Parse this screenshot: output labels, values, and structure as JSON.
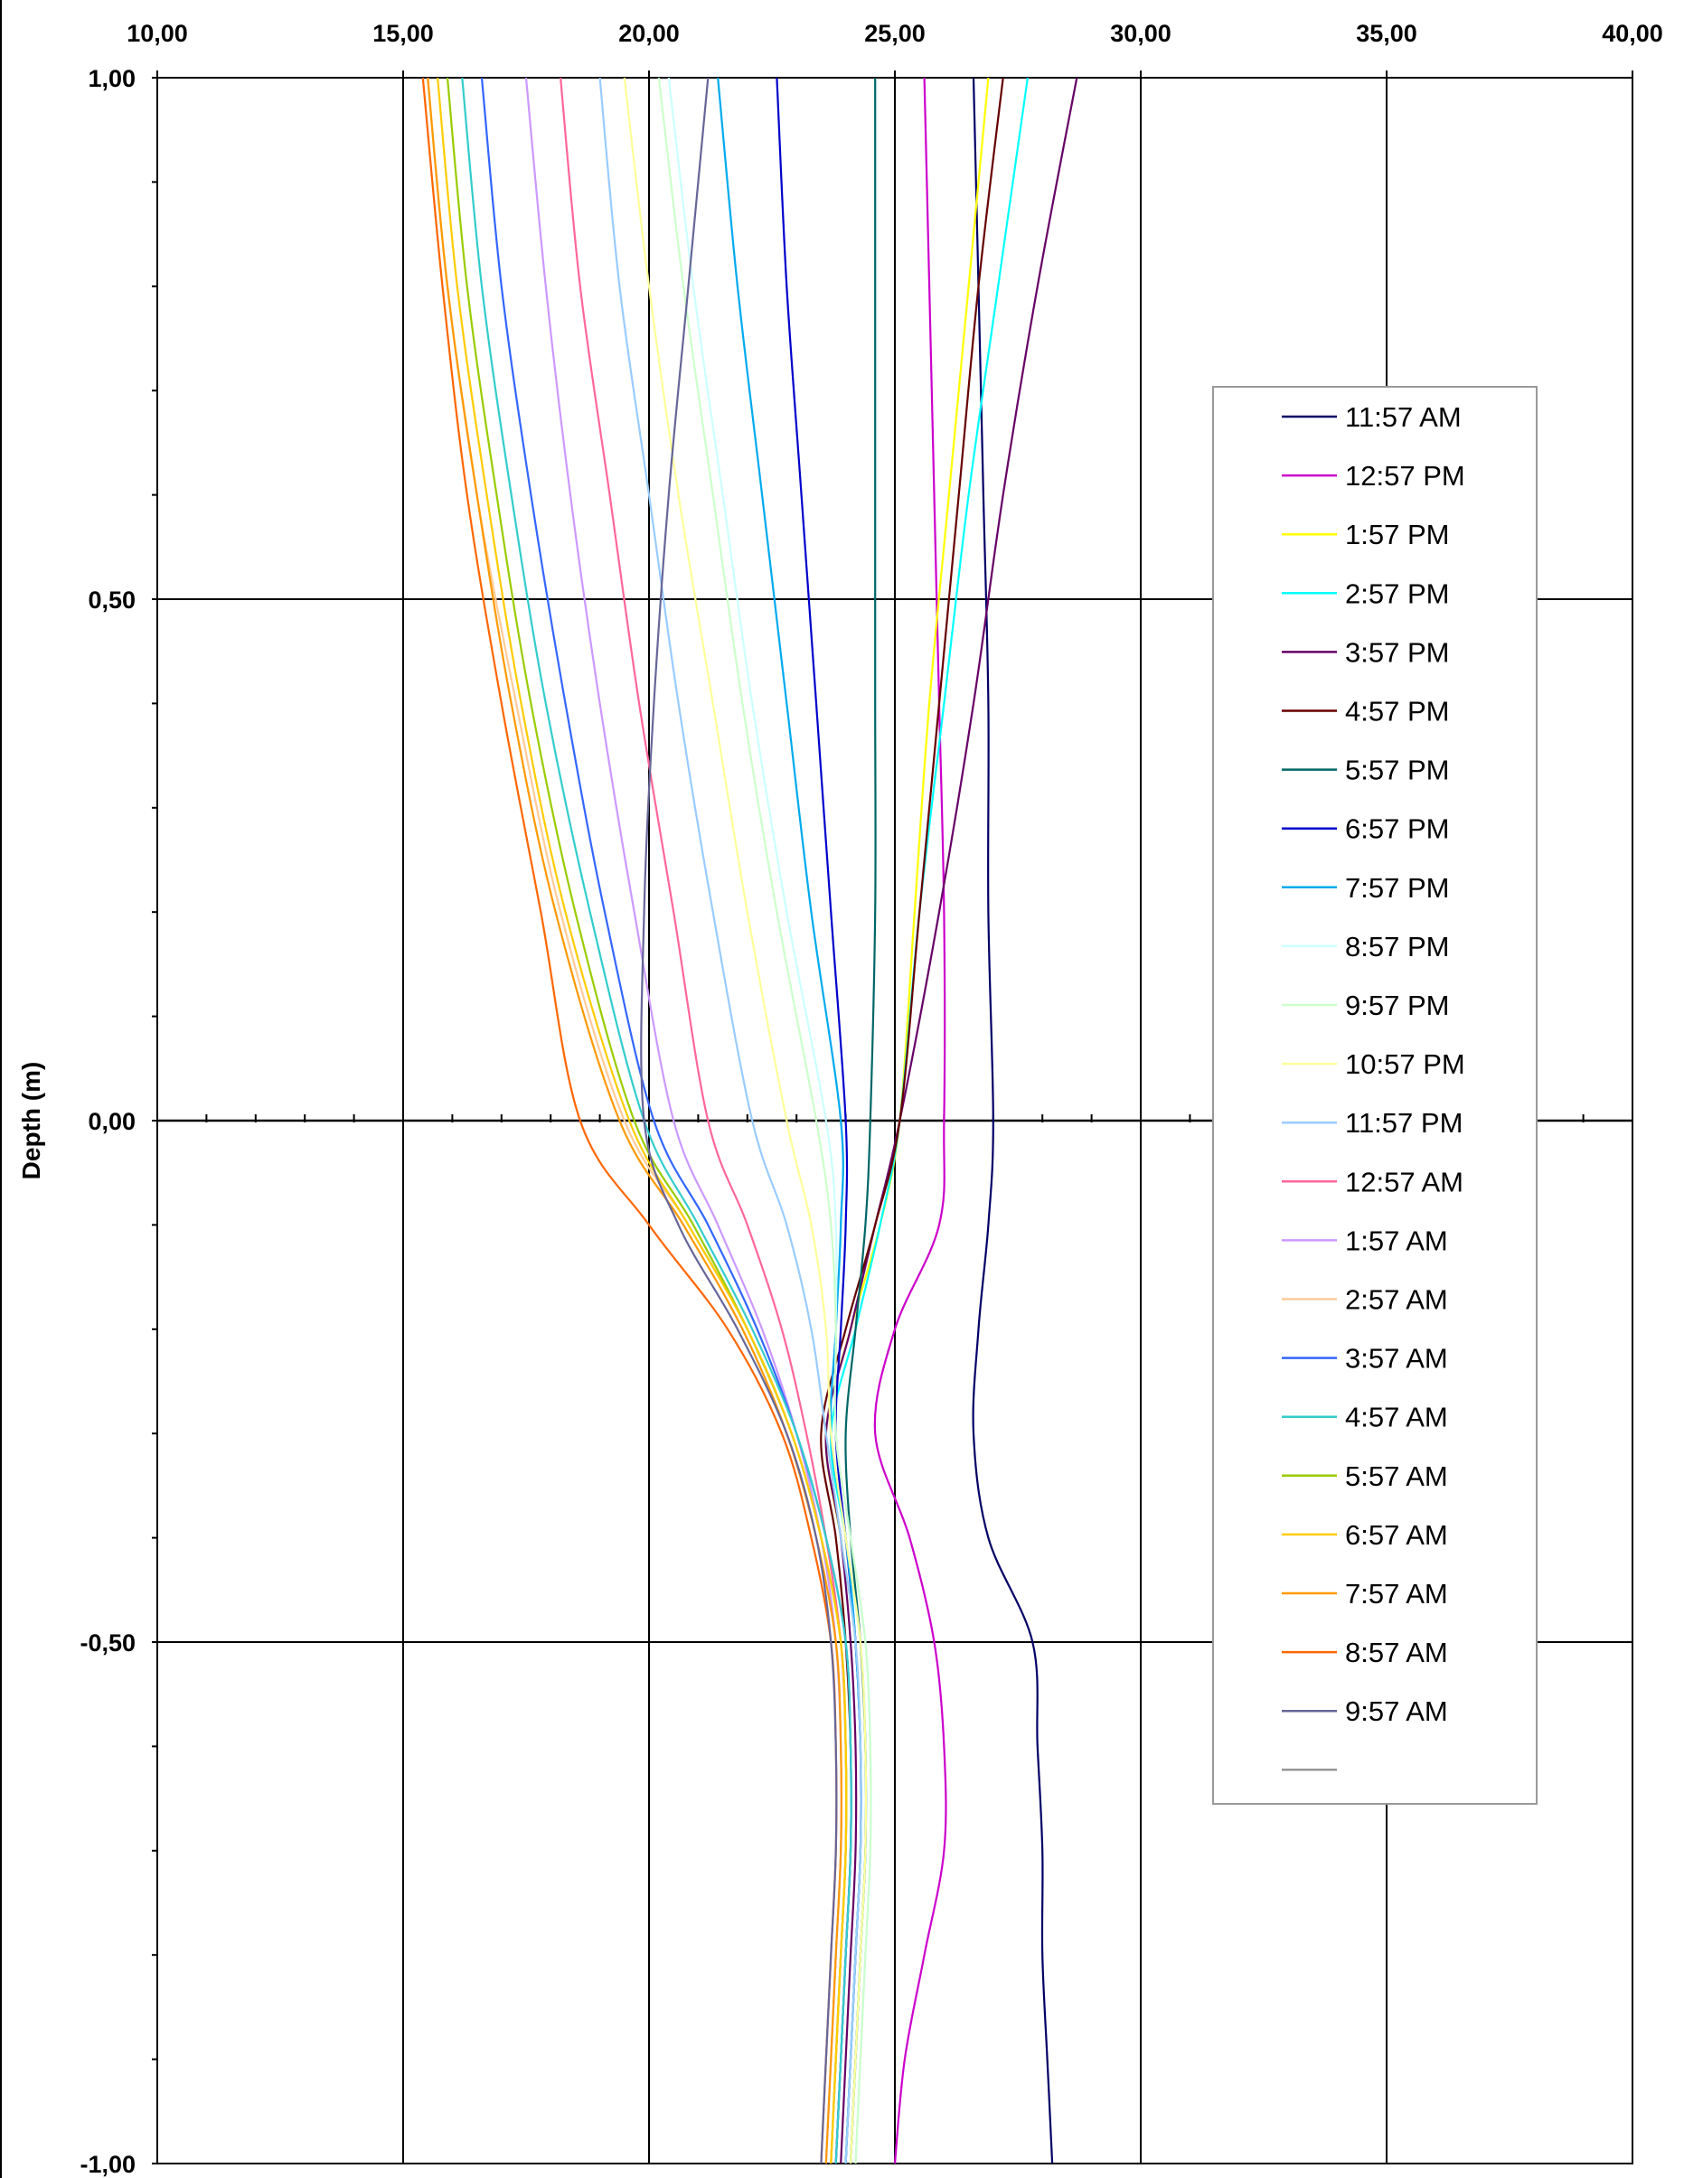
{
  "chart_data": {
    "type": "line",
    "title": "",
    "xlabel": "",
    "ylabel": "Depth (m)",
    "xlim": [
      10,
      40
    ],
    "ylim": [
      -1,
      1
    ],
    "x_ticks": [
      10,
      15,
      20,
      25,
      30,
      35,
      40
    ],
    "x_tick_labels": [
      "10,00",
      "15,00",
      "20,00",
      "25,00",
      "30,00",
      "35,00",
      "40,00"
    ],
    "y_ticks": [
      1,
      0.5,
      0,
      -0.5,
      -1
    ],
    "y_tick_labels": [
      "1,00",
      "0,50",
      "0,00",
      "-0,50",
      "-1,00"
    ],
    "x_axis_position": "top",
    "grid": true,
    "legend_position": "right",
    "depth": [
      1.0,
      0.8,
      0.6,
      0.4,
      0.2,
      0.0,
      -0.1,
      -0.2,
      -0.3,
      -0.4,
      -0.5,
      -0.6,
      -0.7,
      -0.8,
      -0.9,
      -1.0
    ],
    "series": [
      {
        "name": "11:57 AM",
        "color": "#000066",
        "values": [
          26.6,
          26.7,
          26.8,
          26.9,
          26.9,
          27.0,
          26.9,
          26.7,
          26.6,
          26.9,
          27.8,
          27.9,
          28.0,
          28.0,
          28.1,
          28.2
        ]
      },
      {
        "name": "12:57 PM",
        "color": "#cc00cc",
        "values": [
          25.6,
          25.7,
          25.8,
          25.9,
          26.0,
          26.0,
          25.9,
          25.0,
          24.6,
          25.3,
          25.8,
          26.0,
          26.0,
          25.6,
          25.2,
          25.0
        ]
      },
      {
        "name": "1:57 PM",
        "color": "#ffff00",
        "values": [
          26.9,
          26.5,
          26.1,
          25.7,
          25.4,
          25.1,
          24.7,
          24.1,
          23.6,
          23.9,
          24.2,
          24.3,
          24.3,
          24.2,
          24.1,
          24.0
        ]
      },
      {
        "name": "2:57 PM",
        "color": "#00ffff",
        "values": [
          27.7,
          27.1,
          26.5,
          26.0,
          25.5,
          25.1,
          24.7,
          24.2,
          23.7,
          24.0,
          24.3,
          24.4,
          24.4,
          24.3,
          24.2,
          24.1
        ]
      },
      {
        "name": "3:57 PM",
        "color": "#660066",
        "values": [
          28.7,
          27.9,
          27.2,
          26.6,
          25.9,
          25.1,
          24.6,
          24.1,
          23.6,
          23.9,
          24.1,
          24.2,
          24.2,
          24.1,
          24.0,
          23.9
        ]
      },
      {
        "name": "4:57 PM",
        "color": "#660000",
        "values": [
          27.2,
          26.7,
          26.3,
          25.9,
          25.5,
          25.1,
          24.6,
          24.0,
          23.5,
          23.8,
          24.0,
          24.1,
          24.1,
          24.0,
          23.9,
          23.8
        ]
      },
      {
        "name": "5:57 PM",
        "color": "#006666",
        "values": [
          24.6,
          24.6,
          24.6,
          24.6,
          24.6,
          24.5,
          24.4,
          24.2,
          24.0,
          24.1,
          24.3,
          24.4,
          24.4,
          24.3,
          24.2,
          24.1
        ]
      },
      {
        "name": "6:57 PM",
        "color": "#0000cc",
        "values": [
          22.6,
          22.8,
          23.1,
          23.4,
          23.7,
          24.0,
          24.0,
          23.9,
          23.8,
          24.0,
          24.2,
          24.3,
          24.3,
          24.2,
          24.1,
          24.0
        ]
      },
      {
        "name": "7:57 PM",
        "color": "#00aaee",
        "values": [
          21.4,
          21.8,
          22.3,
          22.8,
          23.3,
          23.9,
          23.9,
          23.8,
          23.7,
          24.0,
          24.2,
          24.3,
          24.3,
          24.2,
          24.1,
          24.0
        ]
      },
      {
        "name": "8:57 PM",
        "color": "#ccffff",
        "values": [
          20.4,
          20.9,
          21.5,
          22.1,
          22.8,
          23.6,
          23.8,
          23.8,
          23.8,
          24.1,
          24.4,
          24.5,
          24.5,
          24.4,
          24.3,
          24.2
        ]
      },
      {
        "name": "9:57 PM",
        "color": "#ccffcc",
        "values": [
          20.2,
          20.7,
          21.3,
          21.9,
          22.6,
          23.4,
          23.7,
          23.8,
          23.8,
          24.1,
          24.4,
          24.5,
          24.5,
          24.4,
          24.3,
          24.2
        ]
      },
      {
        "name": "10:57 PM",
        "color": "#ffff99",
        "values": [
          19.5,
          20.0,
          20.6,
          21.3,
          22.0,
          22.8,
          23.3,
          23.6,
          23.7,
          24.0,
          24.3,
          24.4,
          24.4,
          24.3,
          24.2,
          24.1
        ]
      },
      {
        "name": "11:57 PM",
        "color": "#99ccff",
        "values": [
          19.0,
          19.4,
          20.0,
          20.6,
          21.3,
          22.1,
          22.8,
          23.3,
          23.6,
          23.9,
          24.2,
          24.3,
          24.3,
          24.2,
          24.1,
          24.0
        ]
      },
      {
        "name": "12:57 AM",
        "color": "#ff6699",
        "values": [
          18.2,
          18.6,
          19.2,
          19.8,
          20.5,
          21.2,
          22.0,
          22.7,
          23.2,
          23.6,
          23.9,
          24.0,
          24.0,
          23.9,
          23.8,
          23.7
        ]
      },
      {
        "name": "1:57 AM",
        "color": "#cc99ff",
        "values": [
          17.5,
          17.9,
          18.4,
          19.0,
          19.7,
          20.5,
          21.4,
          22.3,
          23.0,
          23.5,
          23.8,
          23.9,
          23.9,
          23.8,
          23.7,
          23.6
        ]
      },
      {
        "name": "2:57 AM",
        "color": "#ffcc99",
        "values": [
          15.5,
          15.9,
          16.5,
          17.3,
          18.2,
          19.5,
          20.8,
          22.0,
          22.9,
          23.5,
          23.9,
          24.0,
          24.0,
          23.9,
          23.8,
          23.7
        ]
      },
      {
        "name": "3:57 AM",
        "color": "#3366ff",
        "values": [
          16.6,
          17.0,
          17.6,
          18.3,
          19.1,
          20.1,
          21.2,
          22.2,
          23.0,
          23.6,
          24.0,
          24.1,
          24.1,
          24.0,
          23.9,
          23.8
        ]
      },
      {
        "name": "4:57 AM",
        "color": "#33cccc",
        "values": [
          16.2,
          16.6,
          17.2,
          17.9,
          18.8,
          19.9,
          21.0,
          22.1,
          23.0,
          23.6,
          24.0,
          24.1,
          24.1,
          24.0,
          23.9,
          23.8
        ]
      },
      {
        "name": "5:57 AM",
        "color": "#99cc00",
        "values": [
          15.9,
          16.3,
          16.9,
          17.6,
          18.5,
          19.7,
          20.9,
          22.0,
          22.9,
          23.5,
          23.9,
          24.0,
          24.0,
          23.9,
          23.8,
          23.7
        ]
      },
      {
        "name": "6:57 AM",
        "color": "#ffcc00",
        "values": [
          15.7,
          16.1,
          16.7,
          17.4,
          18.3,
          19.6,
          20.8,
          22.0,
          22.9,
          23.5,
          23.9,
          24.0,
          24.0,
          23.9,
          23.8,
          23.7
        ]
      },
      {
        "name": "7:57 AM",
        "color": "#ff9900",
        "values": [
          15.5,
          15.9,
          16.5,
          17.2,
          18.1,
          19.4,
          20.7,
          21.9,
          22.8,
          23.4,
          23.8,
          23.9,
          23.9,
          23.8,
          23.7,
          23.6
        ]
      },
      {
        "name": "8:57 AM",
        "color": "#ff6600",
        "values": [
          15.4,
          15.8,
          16.3,
          17.0,
          17.8,
          18.6,
          20.0,
          21.6,
          22.7,
          23.3,
          23.7,
          23.8,
          23.8,
          23.7,
          23.6,
          23.5
        ]
      },
      {
        "name": "9:57 AM",
        "color": "#666699",
        "values": [
          21.2,
          20.8,
          20.4,
          20.1,
          19.9,
          19.9,
          20.6,
          21.8,
          22.8,
          23.4,
          23.7,
          23.8,
          23.8,
          23.7,
          23.6,
          23.5
        ]
      },
      {
        "name": "",
        "color": "#969696",
        "values": []
      }
    ]
  }
}
